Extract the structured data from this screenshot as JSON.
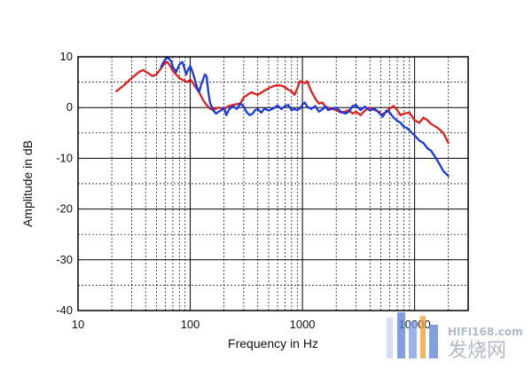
{
  "chart_data": {
    "type": "line",
    "title": "",
    "xlabel": "Frequency in Hz",
    "ylabel": "Amplitude in dB",
    "xscale": "log",
    "xlim": [
      10,
      30000
    ],
    "ylim": [
      -40,
      10
    ],
    "x_tick_labels": [
      "10",
      "100",
      "1000",
      "10000"
    ],
    "y_tick_labels": [
      "10",
      "0",
      "-10",
      "-20",
      "-30",
      "-40"
    ],
    "grid": true,
    "legend": "none",
    "series": [
      {
        "color": "#e02020",
        "x": [
          22,
          26,
          30,
          35,
          38,
          42,
          46,
          50,
          54,
          58,
          62,
          66,
          70,
          75,
          80,
          85,
          90,
          95,
          100,
          105,
          110,
          120,
          130,
          140,
          150,
          160,
          170,
          180,
          200,
          220,
          250,
          280,
          300,
          350,
          400,
          450,
          500,
          550,
          600,
          650,
          700,
          750,
          800,
          850,
          900,
          950,
          1000,
          1050,
          1100,
          1200,
          1300,
          1400,
          1500,
          1600,
          1800,
          2000,
          2200,
          2400,
          2600,
          2800,
          3000,
          3300,
          3600,
          4000,
          4400,
          4800,
          5000,
          5500,
          6000,
          6500,
          7000,
          7500,
          8000,
          9000,
          10000,
          11000,
          12000,
          13000,
          14000,
          15000,
          16000,
          17000,
          18000,
          19000,
          20000
        ],
        "y": [
          3.2,
          4.5,
          5.8,
          7.0,
          7.4,
          6.8,
          6.2,
          6.5,
          7.5,
          8.5,
          9.0,
          8.3,
          7.2,
          6.5,
          5.8,
          5.5,
          5.2,
          5.0,
          5.5,
          5.0,
          4.2,
          3.0,
          1.5,
          0.5,
          -0.2,
          -0.5,
          -0.2,
          0.0,
          -0.3,
          0.3,
          0.6,
          0.8,
          2.0,
          3.0,
          2.5,
          3.2,
          3.8,
          4.2,
          4.4,
          4.3,
          4.0,
          3.5,
          3.2,
          2.5,
          3.8,
          5.2,
          5.0,
          4.8,
          5.2,
          3.2,
          1.8,
          0.8,
          1.0,
          0.2,
          -0.2,
          -0.5,
          -1.0,
          -0.8,
          -0.5,
          -1.2,
          -0.8,
          -1.5,
          -0.6,
          0.0,
          -0.5,
          -0.8,
          -1.4,
          -1.0,
          -0.2,
          0.3,
          -0.5,
          -1.5,
          -1.2,
          -1.0,
          -2.5,
          -3.0,
          -2.0,
          -2.5,
          -3.2,
          -3.6,
          -4.0,
          -4.5,
          -5.0,
          -6.0,
          -7.0
        ]
      },
      {
        "color": "#1a3adf",
        "x": [
          55,
          58,
          60,
          62,
          65,
          68,
          70,
          75,
          80,
          85,
          88,
          92,
          96,
          100,
          105,
          110,
          115,
          120,
          125,
          130,
          135,
          140,
          145,
          150,
          160,
          170,
          180,
          190,
          200,
          210,
          220,
          240,
          260,
          280,
          300,
          320,
          340,
          360,
          380,
          400,
          430,
          460,
          500,
          550,
          600,
          650,
          700,
          750,
          800,
          850,
          900,
          950,
          1000,
          1050,
          1100,
          1200,
          1300,
          1400,
          1500,
          1600,
          1700,
          1800,
          2000,
          2200,
          2400,
          2600,
          2800,
          3000,
          3300,
          3600,
          4000,
          4400,
          4800,
          5200,
          5600,
          6000,
          6500,
          7000,
          7500,
          8000,
          8500,
          9000,
          10000,
          11000,
          12000,
          13000,
          14000,
          15000,
          16000,
          17000,
          18000,
          19000,
          20000
        ],
        "y": [
          8.0,
          9.0,
          9.5,
          9.8,
          9.6,
          9.0,
          8.0,
          7.0,
          8.5,
          9.0,
          8.0,
          6.5,
          7.5,
          8.2,
          7.0,
          5.5,
          4.0,
          3.0,
          4.5,
          5.5,
          6.5,
          6.2,
          3.0,
          1.0,
          -0.5,
          -1.2,
          -0.8,
          -0.5,
          0.0,
          -1.5,
          -0.5,
          0.3,
          -0.3,
          0.8,
          0.2,
          -1.0,
          -1.5,
          -1.2,
          -0.5,
          -0.3,
          -1.0,
          -0.2,
          -0.6,
          -0.2,
          0.4,
          -0.3,
          0.3,
          0.5,
          -0.5,
          -0.3,
          -0.5,
          -0.2,
          0.6,
          1.0,
          0.2,
          -0.3,
          0.3,
          -0.8,
          -0.4,
          0.2,
          -0.5,
          -0.3,
          0.0,
          -0.8,
          -1.2,
          -0.8,
          0.3,
          0.5,
          -0.5,
          0.2,
          -0.6,
          -0.2,
          -1.0,
          -1.8,
          -0.6,
          -1.0,
          -2.0,
          -2.6,
          -3.0,
          -3.8,
          -4.0,
          -4.5,
          -5.5,
          -6.5,
          -7.0,
          -8.0,
          -8.5,
          -9.5,
          -10.5,
          -11.5,
          -12.5,
          -13.0,
          -13.5
        ]
      }
    ]
  },
  "watermark": {
    "site": "HIFI168.com",
    "chinese": "发烧网",
    "colors": {
      "blue": "#5b7fd6",
      "gray": "#9aa2b8",
      "orange": "#f0a030"
    }
  }
}
